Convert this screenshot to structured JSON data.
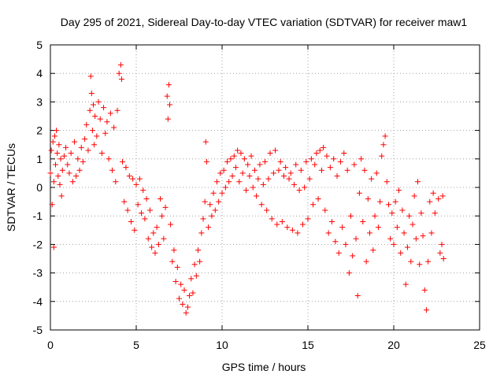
{
  "chart_data": {
    "type": "scatter",
    "title": "Day 295 of 2021, Sidereal Day-to-day VTEC variation (SDTVAR) for receiver maw1",
    "xlabel": "GPS time / hours",
    "ylabel": "SDTVAR / TECUs",
    "xlim": [
      0,
      25
    ],
    "ylim": [
      -5,
      5
    ],
    "xticks": [
      0,
      5,
      10,
      15,
      20,
      25
    ],
    "yticks": [
      -5,
      -4,
      -3,
      -2,
      -1,
      0,
      1,
      2,
      3,
      4,
      5
    ],
    "xtick_labels": [
      "0",
      "5",
      "10",
      "15",
      "20",
      "25"
    ],
    "ytick_labels": [
      "-5",
      "-4",
      "-3",
      "-2",
      "-1",
      "0",
      "1",
      "2",
      "3",
      "4",
      "5"
    ],
    "grid": true,
    "marker": "+",
    "color": "#ff0000",
    "series": [
      {
        "name": "maw1",
        "points": [
          [
            0.0,
            0.5
          ],
          [
            0.05,
            1.3
          ],
          [
            0.1,
            -0.6
          ],
          [
            0.15,
            1.6
          ],
          [
            0.2,
            -2.1
          ],
          [
            0.2,
            0.2
          ],
          [
            0.25,
            1.8
          ],
          [
            0.3,
            0.8
          ],
          [
            0.35,
            2.0
          ],
          [
            0.4,
            1.2
          ],
          [
            0.45,
            0.4
          ],
          [
            0.5,
            1.5
          ],
          [
            0.55,
            0.1
          ],
          [
            0.6,
            1.0
          ],
          [
            0.65,
            -0.3
          ],
          [
            0.7,
            0.6
          ],
          [
            0.8,
            1.1
          ],
          [
            0.9,
            1.4
          ],
          [
            1.0,
            0.8
          ],
          [
            1.1,
            0.5
          ],
          [
            1.2,
            1.2
          ],
          [
            1.3,
            0.2
          ],
          [
            1.4,
            1.6
          ],
          [
            1.5,
            0.4
          ],
          [
            1.6,
            1.0
          ],
          [
            1.7,
            0.6
          ],
          [
            1.8,
            1.4
          ],
          [
            1.9,
            0.9
          ],
          [
            2.0,
            1.7
          ],
          [
            2.1,
            2.2
          ],
          [
            2.2,
            1.3
          ],
          [
            2.3,
            2.7
          ],
          [
            2.35,
            3.9
          ],
          [
            2.4,
            3.3
          ],
          [
            2.45,
            2.0
          ],
          [
            2.5,
            2.9
          ],
          [
            2.55,
            1.5
          ],
          [
            2.6,
            2.5
          ],
          [
            2.7,
            1.8
          ],
          [
            2.8,
            3.0
          ],
          [
            2.9,
            2.4
          ],
          [
            3.0,
            1.2
          ],
          [
            3.1,
            2.8
          ],
          [
            3.2,
            1.9
          ],
          [
            3.3,
            2.3
          ],
          [
            3.4,
            1.0
          ],
          [
            3.5,
            2.6
          ],
          [
            3.6,
            0.6
          ],
          [
            3.7,
            2.1
          ],
          [
            3.8,
            0.2
          ],
          [
            3.9,
            2.7
          ],
          [
            4.0,
            4.0
          ],
          [
            4.1,
            4.3
          ],
          [
            4.15,
            3.8
          ],
          [
            4.2,
            0.9
          ],
          [
            4.3,
            -0.5
          ],
          [
            4.4,
            0.7
          ],
          [
            4.5,
            -0.8
          ],
          [
            4.6,
            0.4
          ],
          [
            4.7,
            -1.2
          ],
          [
            4.8,
            0.3
          ],
          [
            4.9,
            -1.5
          ],
          [
            5.0,
            0.1
          ],
          [
            5.1,
            -0.6
          ],
          [
            5.2,
            0.3
          ],
          [
            5.3,
            -0.9
          ],
          [
            5.4,
            -0.1
          ],
          [
            5.5,
            -1.1
          ],
          [
            5.6,
            -0.4
          ],
          [
            5.7,
            -1.8
          ],
          [
            5.8,
            -0.8
          ],
          [
            5.9,
            -2.1
          ],
          [
            6.0,
            -1.6
          ],
          [
            6.1,
            -2.3
          ],
          [
            6.2,
            -1.4
          ],
          [
            6.3,
            -2.0
          ],
          [
            6.4,
            -0.4
          ],
          [
            6.5,
            -1.0
          ],
          [
            6.6,
            -1.8
          ],
          [
            6.7,
            -0.7
          ],
          [
            6.8,
            3.2
          ],
          [
            6.85,
            2.4
          ],
          [
            6.9,
            3.6
          ],
          [
            6.95,
            2.9
          ],
          [
            7.0,
            -1.3
          ],
          [
            7.1,
            -2.6
          ],
          [
            7.2,
            -2.2
          ],
          [
            7.3,
            -3.3
          ],
          [
            7.4,
            -2.8
          ],
          [
            7.5,
            -3.9
          ],
          [
            7.6,
            -3.4
          ],
          [
            7.7,
            -4.1
          ],
          [
            7.8,
            -3.6
          ],
          [
            7.9,
            -4.4
          ],
          [
            8.0,
            -4.2
          ],
          [
            8.1,
            -3.8
          ],
          [
            8.2,
            -3.2
          ],
          [
            8.3,
            -3.7
          ],
          [
            8.4,
            -2.7
          ],
          [
            8.5,
            -3.1
          ],
          [
            8.6,
            -2.2
          ],
          [
            8.7,
            -2.6
          ],
          [
            8.8,
            -1.6
          ],
          [
            8.9,
            -1.1
          ],
          [
            9.0,
            -0.5
          ],
          [
            9.05,
            1.6
          ],
          [
            9.1,
            0.9
          ],
          [
            9.2,
            -1.4
          ],
          [
            9.3,
            -0.6
          ],
          [
            9.4,
            -1.0
          ],
          [
            9.5,
            -0.2
          ],
          [
            9.6,
            -0.8
          ],
          [
            9.7,
            0.2
          ],
          [
            9.8,
            -0.5
          ],
          [
            9.9,
            0.5
          ],
          [
            10.0,
            -0.2
          ],
          [
            10.1,
            0.6
          ],
          [
            10.2,
            0.0
          ],
          [
            10.3,
            0.9
          ],
          [
            10.4,
            0.2
          ],
          [
            10.5,
            1.0
          ],
          [
            10.6,
            0.4
          ],
          [
            10.7,
            1.1
          ],
          [
            10.8,
            0.7
          ],
          [
            10.9,
            1.3
          ],
          [
            11.0,
            0.2
          ],
          [
            11.1,
            1.2
          ],
          [
            11.2,
            0.5
          ],
          [
            11.3,
            1.0
          ],
          [
            11.4,
            -0.1
          ],
          [
            11.5,
            0.8
          ],
          [
            11.6,
            0.4
          ],
          [
            11.7,
            1.1
          ],
          [
            11.8,
            0.0
          ],
          [
            11.9,
            0.6
          ],
          [
            12.0,
            -0.3
          ],
          [
            12.1,
            0.3
          ],
          [
            12.2,
            0.8
          ],
          [
            12.3,
            -0.6
          ],
          [
            12.4,
            0.1
          ],
          [
            12.5,
            0.9
          ],
          [
            12.6,
            -0.8
          ],
          [
            12.7,
            0.3
          ],
          [
            12.8,
            1.2
          ],
          [
            12.9,
            -1.1
          ],
          [
            13.0,
            0.5
          ],
          [
            13.1,
            1.3
          ],
          [
            13.2,
            -1.3
          ],
          [
            13.3,
            0.6
          ],
          [
            13.4,
            0.9
          ],
          [
            13.5,
            -1.2
          ],
          [
            13.6,
            0.4
          ],
          [
            13.7,
            0.7
          ],
          [
            13.8,
            -1.4
          ],
          [
            13.9,
            0.3
          ],
          [
            14.0,
            0.5
          ],
          [
            14.1,
            -1.5
          ],
          [
            14.2,
            0.1
          ],
          [
            14.3,
            0.8
          ],
          [
            14.4,
            -1.6
          ],
          [
            14.5,
            -0.1
          ],
          [
            14.6,
            0.6
          ],
          [
            14.7,
            -1.3
          ],
          [
            14.8,
            0.0
          ],
          [
            14.9,
            0.9
          ],
          [
            15.0,
            -1.1
          ],
          [
            15.1,
            0.3
          ],
          [
            15.2,
            1.0
          ],
          [
            15.3,
            -0.6
          ],
          [
            15.4,
            0.8
          ],
          [
            15.5,
            1.2
          ],
          [
            15.6,
            -0.4
          ],
          [
            15.7,
            1.3
          ],
          [
            15.8,
            0.6
          ],
          [
            15.9,
            1.4
          ],
          [
            16.0,
            -0.8
          ],
          [
            16.1,
            1.1
          ],
          [
            16.2,
            -1.6
          ],
          [
            16.3,
            0.7
          ],
          [
            16.4,
            -1.2
          ],
          [
            16.5,
            1.0
          ],
          [
            16.6,
            -1.9
          ],
          [
            16.7,
            0.4
          ],
          [
            16.8,
            -2.3
          ],
          [
            16.9,
            0.9
          ],
          [
            17.0,
            -1.4
          ],
          [
            17.1,
            1.2
          ],
          [
            17.2,
            -2.0
          ],
          [
            17.3,
            0.6
          ],
          [
            17.4,
            -3.0
          ],
          [
            17.5,
            -1.0
          ],
          [
            17.6,
            -2.4
          ],
          [
            17.7,
            0.8
          ],
          [
            17.8,
            -1.8
          ],
          [
            17.9,
            -3.8
          ],
          [
            18.0,
            -0.2
          ],
          [
            18.1,
            1.0
          ],
          [
            18.2,
            -1.2
          ],
          [
            18.3,
            0.6
          ],
          [
            18.4,
            -2.6
          ],
          [
            18.5,
            -0.4
          ],
          [
            18.6,
            -1.6
          ],
          [
            18.7,
            0.3
          ],
          [
            18.8,
            -2.2
          ],
          [
            18.9,
            -1.0
          ],
          [
            19.0,
            0.5
          ],
          [
            19.1,
            -1.4
          ],
          [
            19.2,
            -0.5
          ],
          [
            19.3,
            1.1
          ],
          [
            19.4,
            1.5
          ],
          [
            19.5,
            1.8
          ],
          [
            19.6,
            0.2
          ],
          [
            19.7,
            -0.6
          ],
          [
            19.8,
            -1.8
          ],
          [
            19.9,
            -0.9
          ],
          [
            20.0,
            -2.0
          ],
          [
            20.1,
            -0.5
          ],
          [
            20.2,
            -1.4
          ],
          [
            20.3,
            -0.1
          ],
          [
            20.4,
            -2.3
          ],
          [
            20.5,
            -0.8
          ],
          [
            20.6,
            -1.6
          ],
          [
            20.7,
            -3.4
          ],
          [
            20.8,
            -2.1
          ],
          [
            20.9,
            -1.0
          ],
          [
            21.0,
            -2.6
          ],
          [
            21.1,
            -1.3
          ],
          [
            21.2,
            -0.3
          ],
          [
            21.3,
            -1.8
          ],
          [
            21.4,
            0.2
          ],
          [
            21.5,
            -2.7
          ],
          [
            21.6,
            -0.9
          ],
          [
            21.7,
            -1.7
          ],
          [
            21.8,
            -3.6
          ],
          [
            21.9,
            -4.3
          ],
          [
            22.0,
            -2.6
          ],
          [
            22.1,
            -0.5
          ],
          [
            22.2,
            -1.6
          ],
          [
            22.3,
            -0.2
          ],
          [
            22.4,
            -0.9
          ],
          [
            22.6,
            -0.4
          ],
          [
            22.7,
            -2.3
          ],
          [
            22.8,
            -2.0
          ],
          [
            22.85,
            -0.3
          ],
          [
            22.9,
            -2.5
          ]
        ]
      }
    ]
  }
}
